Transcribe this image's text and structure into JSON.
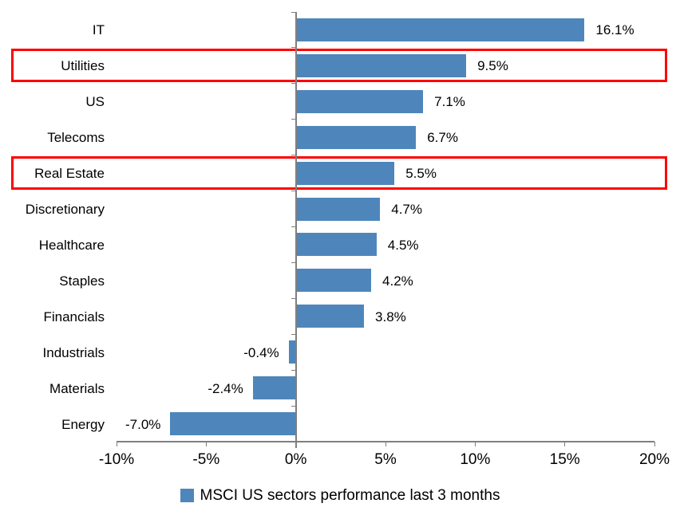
{
  "chart_data": {
    "type": "bar",
    "orientation": "horizontal",
    "categories": [
      "IT",
      "Utilities",
      "US",
      "Telecoms",
      "Real Estate",
      "Discretionary",
      "Healthcare",
      "Staples",
      "Financials",
      "Industrials",
      "Materials",
      "Energy"
    ],
    "values": [
      16.1,
      9.5,
      7.1,
      6.7,
      5.5,
      4.7,
      4.5,
      4.2,
      3.8,
      -0.4,
      -2.4,
      -7.0
    ],
    "value_labels": [
      "16.1%",
      "9.5%",
      "7.1%",
      "6.7%",
      "5.5%",
      "4.7%",
      "4.5%",
      "4.2%",
      "3.8%",
      "-0.4%",
      "-2.4%",
      "-7.0%"
    ],
    "highlighted_categories": [
      "Utilities",
      "Real Estate"
    ],
    "x_axis": {
      "min": -10,
      "max": 20,
      "tick_step": 5,
      "tick_values": [
        -10,
        -5,
        0,
        5,
        10,
        15,
        20
      ],
      "tick_labels": [
        "-10%",
        "-5%",
        "0%",
        "5%",
        "10%",
        "15%",
        "20%"
      ]
    },
    "legend": {
      "label": "MSCI US sectors performance last 3 months",
      "position": "bottom"
    },
    "colors": {
      "bar": "#4E86BC",
      "highlight_box": "#FF0000",
      "axis": "#7F7F7F",
      "text": "#000000",
      "background": "#FFFFFF"
    },
    "grid": false,
    "title": ""
  }
}
